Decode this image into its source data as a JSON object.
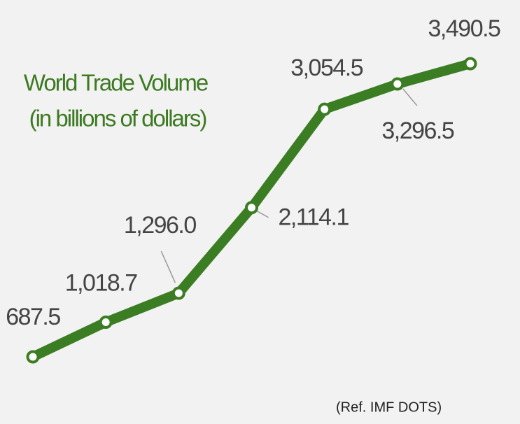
{
  "chart_data": {
    "type": "line",
    "title": "World Trade Volume",
    "subtitle": "(in billions of dollars)",
    "note": "(Ref. IMF DOTS)",
    "series": [
      {
        "color": "#3b7d23",
        "values": [
          687.5,
          1018.7,
          1296.0,
          2114.1,
          3054.5,
          3296.5,
          3490.5
        ],
        "value_labels": [
          "687.5",
          "1,018.7",
          "1,296.0",
          "2,114.1",
          "3,054.5",
          "3,296.5",
          "3,490.5"
        ]
      }
    ]
  }
}
